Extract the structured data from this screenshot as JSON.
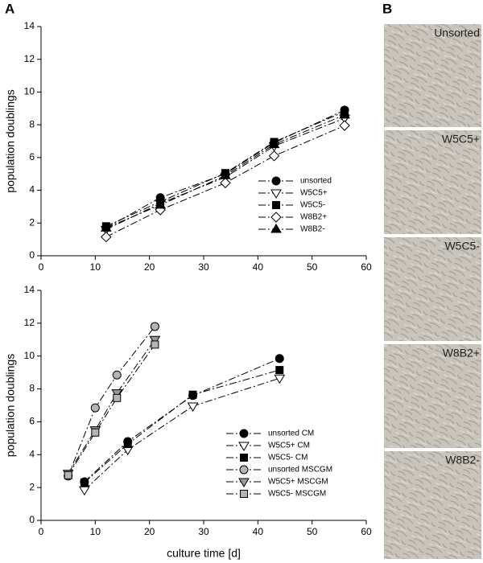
{
  "panel_labels": [
    "A",
    "B"
  ],
  "images": [
    {
      "label": "Unsorted"
    },
    {
      "label": "W5C5+"
    },
    {
      "label": "W5C5-"
    },
    {
      "label": "W8B2+"
    },
    {
      "label": "W8B2-"
    }
  ],
  "chart_data": [
    {
      "type": "line",
      "y_label": "population doublings",
      "xlim": [
        0,
        60
      ],
      "xticks": [
        0,
        10,
        20,
        30,
        40,
        50,
        60
      ],
      "ylim": [
        0,
        14
      ],
      "yticks": [
        0,
        2,
        4,
        6,
        8,
        10,
        12,
        14
      ],
      "legend": "lower right",
      "series": [
        {
          "name": "unsorted",
          "color": "#000000",
          "marker": "circle",
          "x": [
            12,
            22,
            34,
            43,
            56
          ],
          "values": [
            1.7,
            3.55,
            5.0,
            6.9,
            8.9
          ]
        },
        {
          "name": "W5C5+",
          "color": "#ffffff",
          "marker": "triangle-down",
          "x": [
            12,
            22,
            34,
            43,
            56
          ],
          "values": [
            1.6,
            3.2,
            4.8,
            6.7,
            8.4
          ]
        },
        {
          "name": "W5C5-",
          "color": "#000000",
          "marker": "square",
          "x": [
            12,
            22,
            34,
            43,
            56
          ],
          "values": [
            1.8,
            3.3,
            5.05,
            6.95,
            8.8
          ]
        },
        {
          "name": "W8B2+",
          "color": "#ffffff",
          "marker": "diamond",
          "x": [
            12,
            22,
            34,
            43,
            56
          ],
          "values": [
            1.15,
            2.8,
            4.45,
            6.1,
            7.95
          ]
        },
        {
          "name": "W8B2-",
          "color": "#000000",
          "marker": "triangle-up",
          "x": [
            12,
            22,
            34,
            43,
            56
          ],
          "values": [
            1.7,
            3.1,
            4.9,
            6.8,
            8.6
          ]
        }
      ]
    },
    {
      "type": "line",
      "y_label": "population doublings",
      "x_label": "culture time [d]",
      "xlim": [
        0,
        60
      ],
      "xticks": [
        0,
        10,
        20,
        30,
        40,
        50,
        60
      ],
      "ylim": [
        0,
        14
      ],
      "yticks": [
        0,
        2,
        4,
        6,
        8,
        10,
        12,
        14
      ],
      "legend": "lower right",
      "series": [
        {
          "name": "unsorted CM",
          "color": "#000000",
          "marker": "circle",
          "x": [
            8,
            16,
            28,
            44
          ],
          "values": [
            2.35,
            4.8,
            7.6,
            9.85
          ]
        },
        {
          "name": "W5C5+ CM",
          "color": "#ffffff",
          "marker": "triangle-down",
          "x": [
            8,
            16,
            28,
            44
          ],
          "values": [
            1.85,
            4.3,
            6.95,
            8.65
          ]
        },
        {
          "name": "W5C5- CM",
          "color": "#000000",
          "marker": "square",
          "x": [
            8,
            16,
            28,
            44
          ],
          "values": [
            2.3,
            4.65,
            7.65,
            9.15
          ]
        },
        {
          "name": "unsorted MSCGM",
          "color": "#b4b4b4",
          "marker": "circle",
          "x": [
            5,
            10,
            14,
            21
          ],
          "values": [
            2.7,
            6.85,
            8.85,
            11.8
          ]
        },
        {
          "name": "W5C5+ MSCGM",
          "color": "#9a9a9a",
          "marker": "triangle-down",
          "x": [
            5,
            10,
            14,
            21
          ],
          "values": [
            2.85,
            5.5,
            7.75,
            11.0
          ]
        },
        {
          "name": "W5C5- MSCGM",
          "color": "#b4b4b4",
          "marker": "square",
          "x": [
            5,
            10,
            14,
            21
          ],
          "values": [
            2.75,
            5.35,
            7.45,
            10.7
          ]
        }
      ]
    }
  ]
}
